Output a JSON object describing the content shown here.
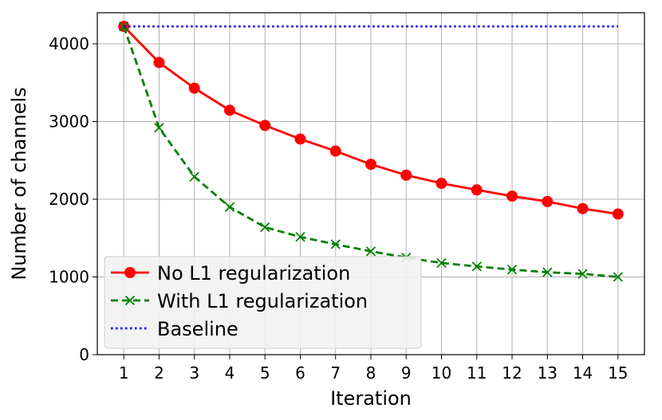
{
  "chart_data": {
    "type": "line",
    "xlabel": "Iteration",
    "ylabel": "Number of channels",
    "x": [
      1,
      2,
      3,
      4,
      5,
      6,
      7,
      8,
      9,
      10,
      11,
      12,
      13,
      14,
      15
    ],
    "xticks": [
      "1",
      "2",
      "3",
      "4",
      "5",
      "6",
      "7",
      "8",
      "9",
      "10",
      "11",
      "12",
      "13",
      "14",
      "15"
    ],
    "yticks": [
      "0",
      "1000",
      "2000",
      "3000",
      "4000"
    ],
    "ylim": [
      0,
      4400
    ],
    "xlim": [
      0.25,
      15.75
    ],
    "grid": true,
    "legend_position": "lower-left",
    "series": [
      {
        "name": "No L1 regularization",
        "color": "#ff0000",
        "style": "solid",
        "marker": "circle",
        "values": [
          4224,
          3760,
          3430,
          3145,
          2950,
          2775,
          2620,
          2450,
          2310,
          2205,
          2120,
          2040,
          1970,
          1880,
          1810
        ]
      },
      {
        "name": "With L1 regularization",
        "color": "#008000",
        "style": "dashed",
        "marker": "x",
        "values": [
          4224,
          2920,
          2290,
          1900,
          1640,
          1515,
          1420,
          1330,
          1250,
          1180,
          1135,
          1095,
          1060,
          1040,
          1000
        ]
      },
      {
        "name": "Baseline",
        "color": "#0000ff",
        "style": "dotted",
        "marker": "none",
        "values": [
          4224,
          4224,
          4224,
          4224,
          4224,
          4224,
          4224,
          4224,
          4224,
          4224,
          4224,
          4224,
          4224,
          4224,
          4224
        ]
      }
    ]
  }
}
